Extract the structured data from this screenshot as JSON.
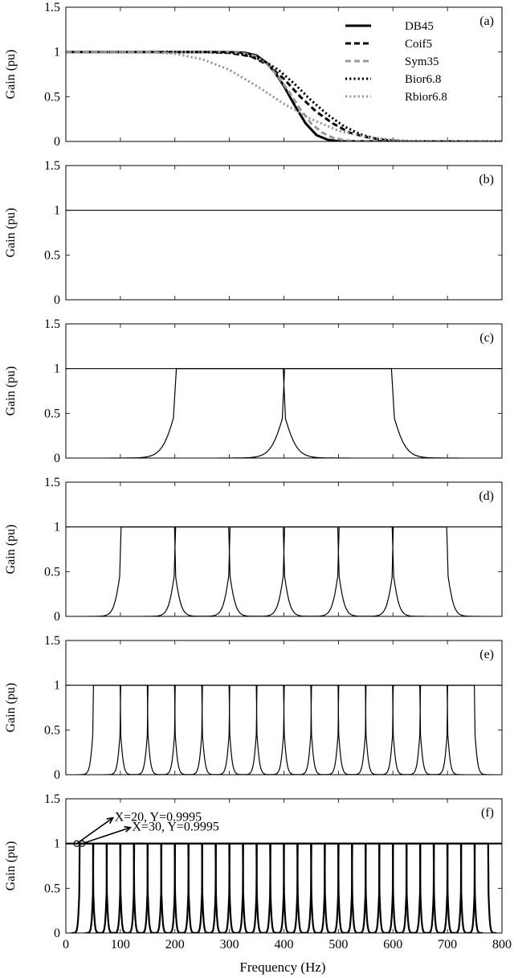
{
  "figure": {
    "xlabel": "Frequency (Hz)",
    "ylabel": "Gain (pu)"
  },
  "chart_data": [
    {
      "panel": "(a)",
      "type": "line",
      "xlim": [
        0,
        800
      ],
      "ylim": [
        0,
        1.5
      ],
      "yticks": [
        "0",
        "0.5",
        "1",
        "1.5"
      ],
      "xticks": [],
      "legend": "top-right",
      "series": [
        {
          "name": "DB45",
          "style": "solid",
          "color": "#000000",
          "x": [
            0,
            300,
            330,
            350,
            370,
            385,
            400,
            420,
            440,
            460,
            480,
            500,
            800
          ],
          "y": [
            1,
            1,
            0.99,
            0.96,
            0.87,
            0.76,
            0.62,
            0.4,
            0.2,
            0.07,
            0.02,
            0.003,
            0
          ]
        },
        {
          "name": "Coif5",
          "style": "dashed",
          "color": "#000000",
          "x": [
            0,
            250,
            300,
            340,
            370,
            400,
            430,
            460,
            490,
            520,
            550,
            580,
            610,
            800
          ],
          "y": [
            1,
            1,
            0.99,
            0.95,
            0.86,
            0.7,
            0.5,
            0.33,
            0.2,
            0.1,
            0.05,
            0.02,
            0,
            0
          ]
        },
        {
          "name": "Sym35",
          "style": "dashed",
          "color": "#999999",
          "x": [
            0,
            300,
            330,
            350,
            370,
            390,
            410,
            430,
            450,
            470,
            490,
            510,
            530,
            800
          ],
          "y": [
            1,
            1,
            0.98,
            0.95,
            0.86,
            0.72,
            0.55,
            0.36,
            0.2,
            0.1,
            0.04,
            0.015,
            0,
            0
          ]
        },
        {
          "name": "Bior6.8",
          "style": "dotted",
          "color": "#000000",
          "x": [
            0,
            250,
            300,
            330,
            360,
            390,
            420,
            450,
            480,
            510,
            540,
            570,
            600,
            630,
            800
          ],
          "y": [
            1,
            1,
            0.99,
            0.97,
            0.91,
            0.8,
            0.64,
            0.46,
            0.3,
            0.17,
            0.08,
            0.03,
            0.01,
            0,
            0
          ]
        },
        {
          "name": "Rbior6.8",
          "style": "dotted",
          "color": "#999999",
          "x": [
            0,
            150,
            200,
            250,
            300,
            350,
            400,
            450,
            500,
            550,
            600,
            650,
            800
          ],
          "y": [
            1,
            1,
            0.98,
            0.92,
            0.8,
            0.62,
            0.42,
            0.25,
            0.12,
            0.05,
            0.015,
            0,
            0
          ]
        }
      ]
    },
    {
      "panel": "(b)",
      "type": "line",
      "xlim": [
        0,
        800
      ],
      "ylim": [
        0,
        1.5
      ],
      "yticks": [
        "0",
        "0.5",
        "1",
        "1.5"
      ],
      "xticks": [],
      "bands": [
        [
          0,
          400,
          800
        ]
      ]
    },
    {
      "panel": "(c)",
      "type": "line",
      "xlim": [
        0,
        800
      ],
      "ylim": [
        0,
        1.5
      ],
      "yticks": [
        "0",
        "0.5",
        "1",
        "1.5"
      ],
      "xticks": [],
      "bands": [
        [
          0,
          200,
          400
        ],
        [
          200,
          400,
          600
        ],
        [
          400,
          600,
          800
        ]
      ]
    },
    {
      "panel": "(d)",
      "type": "line",
      "xlim": [
        0,
        800
      ],
      "ylim": [
        0,
        1.5
      ],
      "yticks": [
        "0",
        "0.5",
        "1",
        "1.5"
      ],
      "xticks": [],
      "bands": [
        [
          0,
          100,
          200
        ],
        [
          100,
          200,
          300
        ],
        [
          200,
          300,
          400
        ],
        [
          300,
          400,
          500
        ],
        [
          400,
          500,
          600
        ],
        [
          500,
          600,
          700
        ],
        [
          600,
          700,
          800
        ]
      ]
    },
    {
      "panel": "(e)",
      "type": "line",
      "xlim": [
        0,
        800
      ],
      "ylim": [
        0,
        1.5
      ],
      "yticks": [
        "0",
        "0.5",
        "1",
        "1.5"
      ],
      "xticks": [],
      "bands": [
        [
          0,
          50,
          100
        ],
        [
          50,
          100,
          150
        ],
        [
          100,
          150,
          200
        ],
        [
          150,
          200,
          250
        ],
        [
          200,
          250,
          300
        ],
        [
          250,
          300,
          350
        ],
        [
          300,
          350,
          400
        ],
        [
          350,
          400,
          450
        ],
        [
          400,
          450,
          500
        ],
        [
          450,
          500,
          550
        ],
        [
          500,
          550,
          600
        ],
        [
          550,
          600,
          650
        ],
        [
          600,
          650,
          700
        ],
        [
          650,
          700,
          750
        ],
        [
          700,
          750,
          800
        ]
      ]
    },
    {
      "panel": "(f)",
      "type": "line",
      "xlim": [
        0,
        800
      ],
      "ylim": [
        0,
        1.5
      ],
      "yticks": [
        "0",
        "0.5",
        "1",
        "1.5"
      ],
      "xticks": [
        "0",
        "100",
        "200",
        "300",
        "400",
        "500",
        "600",
        "700",
        "800"
      ],
      "bands": [
        [
          0,
          25,
          50
        ],
        [
          25,
          50,
          75
        ],
        [
          50,
          75,
          100
        ],
        [
          75,
          100,
          125
        ],
        [
          100,
          125,
          150
        ],
        [
          125,
          150,
          175
        ],
        [
          150,
          175,
          200
        ],
        [
          175,
          200,
          225
        ],
        [
          200,
          225,
          250
        ],
        [
          225,
          250,
          275
        ],
        [
          250,
          275,
          300
        ],
        [
          275,
          300,
          325
        ],
        [
          300,
          325,
          350
        ],
        [
          325,
          350,
          375
        ],
        [
          350,
          375,
          400
        ],
        [
          375,
          400,
          425
        ],
        [
          400,
          425,
          450
        ],
        [
          425,
          450,
          475
        ],
        [
          450,
          475,
          500
        ],
        [
          475,
          500,
          525
        ],
        [
          500,
          525,
          550
        ],
        [
          525,
          550,
          575
        ],
        [
          550,
          575,
          600
        ],
        [
          575,
          600,
          625
        ],
        [
          600,
          625,
          650
        ],
        [
          625,
          650,
          675
        ],
        [
          650,
          675,
          700
        ],
        [
          675,
          700,
          725
        ],
        [
          700,
          725,
          750
        ],
        [
          725,
          750,
          775
        ],
        [
          750,
          775,
          800
        ]
      ],
      "annotations": [
        {
          "text": "X=20, Y=0.9995",
          "x": 20,
          "y": 0.9995
        },
        {
          "text": "X=30, Y=0.9995",
          "x": 30,
          "y": 0.9995
        }
      ]
    }
  ]
}
